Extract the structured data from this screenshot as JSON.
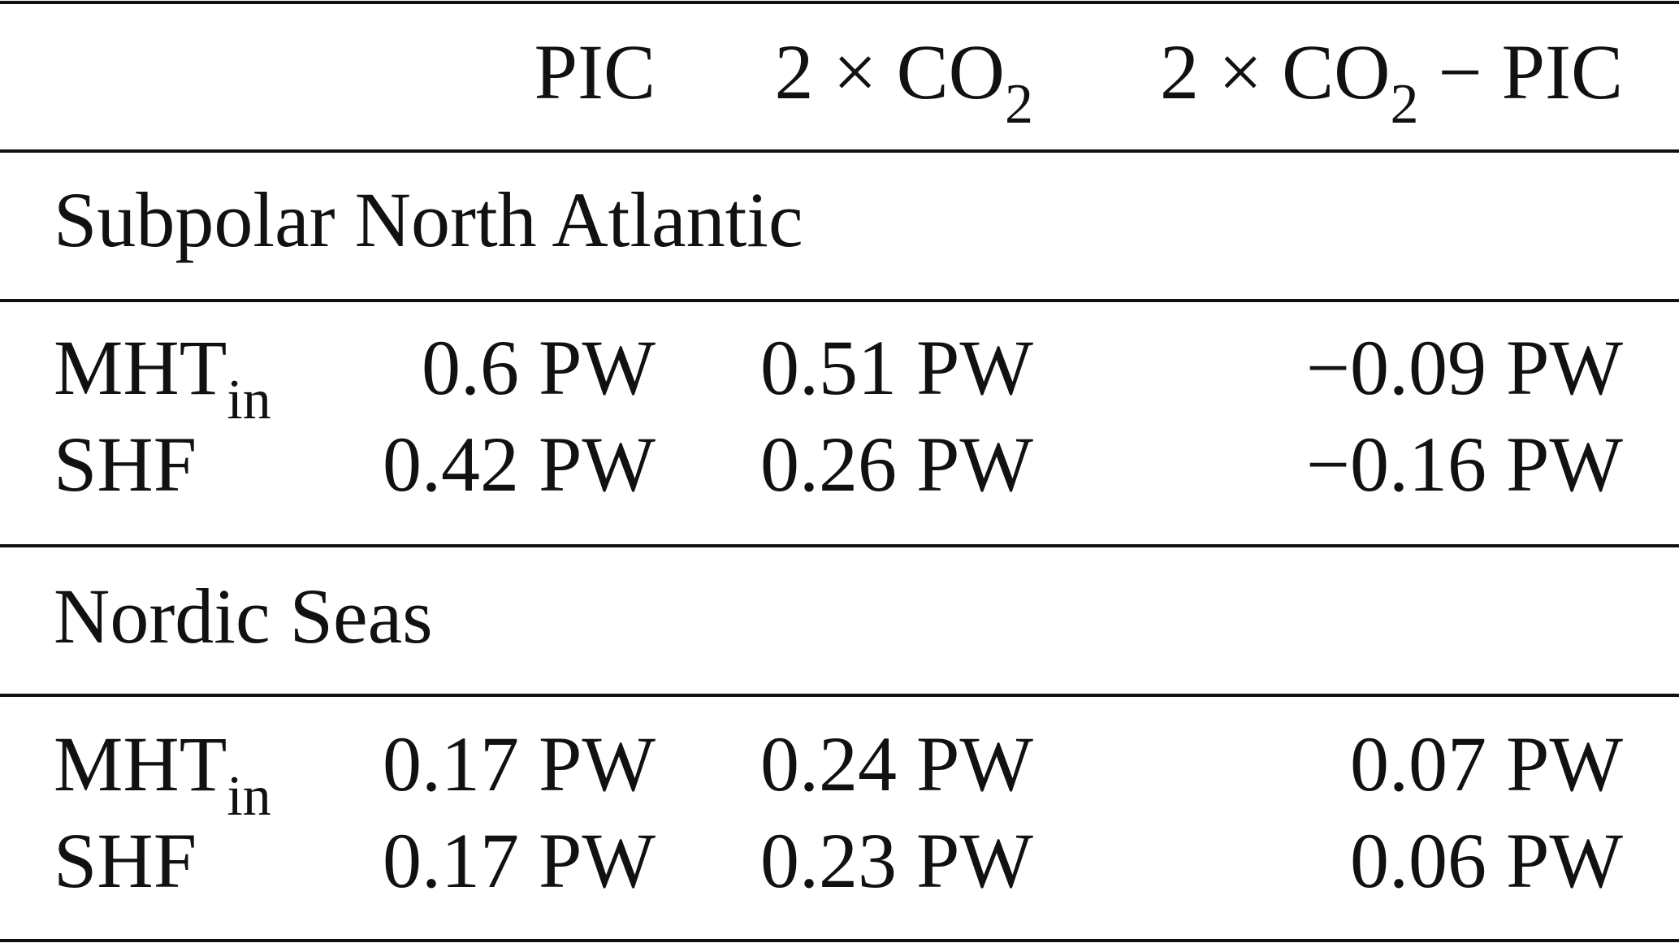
{
  "header": {
    "columns": [
      {
        "text": "PIC"
      },
      {
        "text": "2 × CO",
        "sub": "2"
      },
      {
        "text": "2 × CO",
        "sub": "2",
        "after": " − PIC"
      }
    ]
  },
  "sections": [
    {
      "title": "Subpolar North Atlantic",
      "rows": [
        {
          "label": {
            "text": "MHT",
            "sub": "in"
          },
          "cells": [
            "0.6 PW",
            "0.51 PW",
            "−0.09 PW"
          ]
        },
        {
          "label": {
            "text": "SHF"
          },
          "cells": [
            "0.42 PW",
            "0.26 PW",
            "−0.16 PW"
          ]
        }
      ]
    },
    {
      "title": "Nordic Seas",
      "rows": [
        {
          "label": {
            "text": "MHT",
            "sub": "in"
          },
          "cells": [
            "0.17 PW",
            "0.24 PW",
            "0.07 PW"
          ]
        },
        {
          "label": {
            "text": "SHF"
          },
          "cells": [
            "0.17 PW",
            "0.23 PW",
            "0.06 PW"
          ]
        }
      ]
    }
  ]
}
